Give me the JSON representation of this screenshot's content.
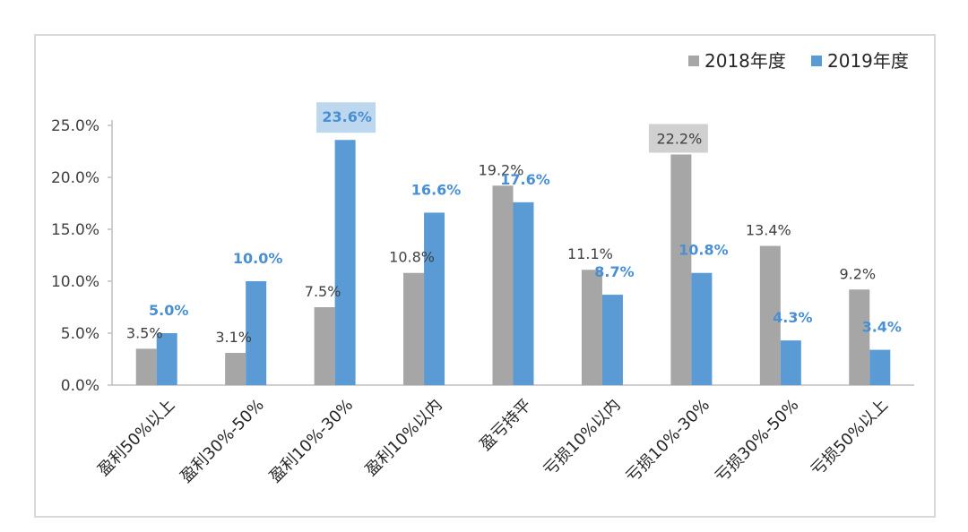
{
  "chart_data": {
    "type": "bar",
    "categories": [
      "盈利50%以上",
      "盈利30%-50%",
      "盈利10%-30%",
      "盈利10%以内",
      "盈亏持平",
      "亏损10%以内",
      "亏损10%-30%",
      "亏损30%-50%",
      "亏损50%以上"
    ],
    "series": [
      {
        "name": "2018年度",
        "values": [
          3.5,
          3.1,
          7.5,
          10.8,
          19.2,
          11.1,
          22.2,
          13.4,
          9.2
        ],
        "labels": [
          "3.5%",
          "3.1%",
          "7.5%",
          "10.8%",
          "19.2%",
          "11.1%",
          "22.2%",
          "13.4%",
          "9.2%"
        ],
        "color": "#a6a6a6"
      },
      {
        "name": "2019年度",
        "values": [
          5.0,
          10.0,
          23.6,
          16.6,
          17.6,
          8.7,
          10.8,
          4.3,
          3.4
        ],
        "labels": [
          "5.0%",
          "10.0%",
          "23.6%",
          "16.6%",
          "17.6%",
          "8.7%",
          "10.8%",
          "4.3%",
          "3.4%"
        ],
        "color": "#5b9bd5"
      }
    ],
    "yticks": [
      "0.0%",
      "5.0%",
      "10.0%",
      "15.0%",
      "20.0%",
      "25.0%"
    ],
    "ylim": [
      0,
      25
    ],
    "legend_position": "top-right",
    "highlight_colors": {
      "2018": "#d0d0d0",
      "2019": "#bdd7ee"
    },
    "grid": false
  }
}
